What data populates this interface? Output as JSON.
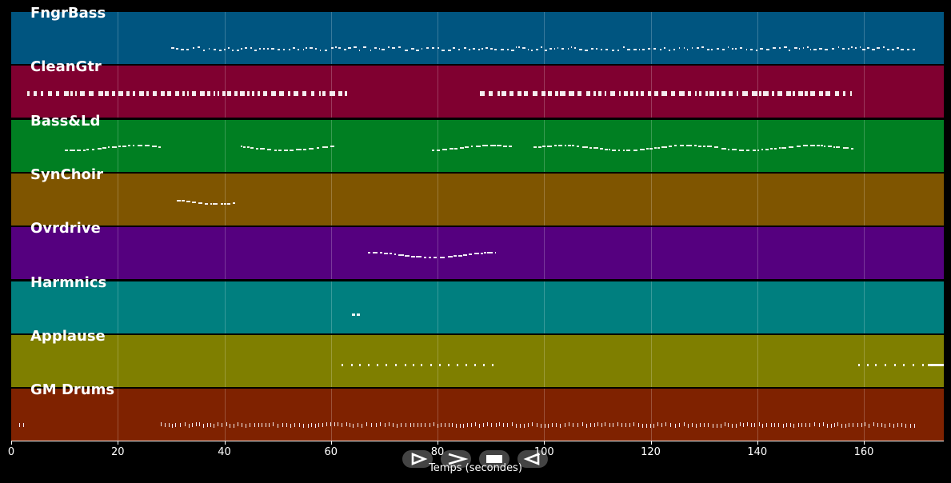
{
  "chart_data": {
    "type": "piano-roll",
    "xlabel": "Temps (secondes)",
    "xlim": [
      0,
      175
    ],
    "xticks": [
      0,
      20,
      40,
      60,
      80,
      100,
      120,
      140,
      160
    ],
    "grid": true,
    "tracks": [
      {
        "name": "FngrBass",
        "color": "#005580",
        "segments": [
          [
            30,
            170
          ]
        ],
        "style": "dense"
      },
      {
        "name": "CleanGtr",
        "color": "#800030",
        "segments": [
          [
            3,
            63
          ],
          [
            88,
            158
          ]
        ],
        "style": "blocks"
      },
      {
        "name": "Bass&Ld",
        "color": "#007f22",
        "segments": [
          [
            10,
            28
          ],
          [
            43,
            61
          ],
          [
            79,
            94
          ],
          [
            98,
            158
          ]
        ],
        "style": "melody"
      },
      {
        "name": "SynChoir",
        "color": "#7f5500",
        "segments": [
          [
            31,
            42
          ]
        ],
        "style": "melody"
      },
      {
        "name": "Ovrdrive",
        "color": "#55007f",
        "segments": [
          [
            67,
            91
          ]
        ],
        "style": "melody"
      },
      {
        "name": "Harmnics",
        "color": "#007f7f",
        "segments": [
          [
            64,
            65.5
          ]
        ],
        "style": "short"
      },
      {
        "name": "Applause",
        "color": "#7f7f00",
        "segments": [
          [
            62,
            91
          ],
          [
            159,
            175
          ]
        ],
        "style": "sparse"
      },
      {
        "name": "GM Drums",
        "color": "#7f2200",
        "segments": [
          [
            1.5,
            3
          ],
          [
            28,
            170
          ]
        ],
        "style": "drums"
      }
    ]
  },
  "transport": {
    "buttons": [
      {
        "name": "play-button",
        "icon": "play-outline-icon"
      },
      {
        "name": "fast-forward-button",
        "icon": "fast-forward-icon"
      },
      {
        "name": "stop-button",
        "icon": "stop-icon"
      },
      {
        "name": "rewind-button",
        "icon": "rewind-icon"
      }
    ]
  }
}
